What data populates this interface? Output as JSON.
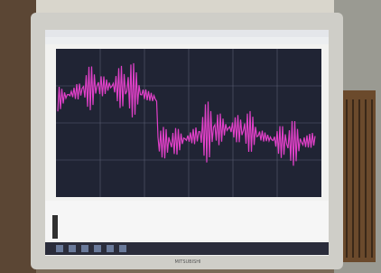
{
  "bezel": {
    "brand": "MITSUBISHI"
  }
}
